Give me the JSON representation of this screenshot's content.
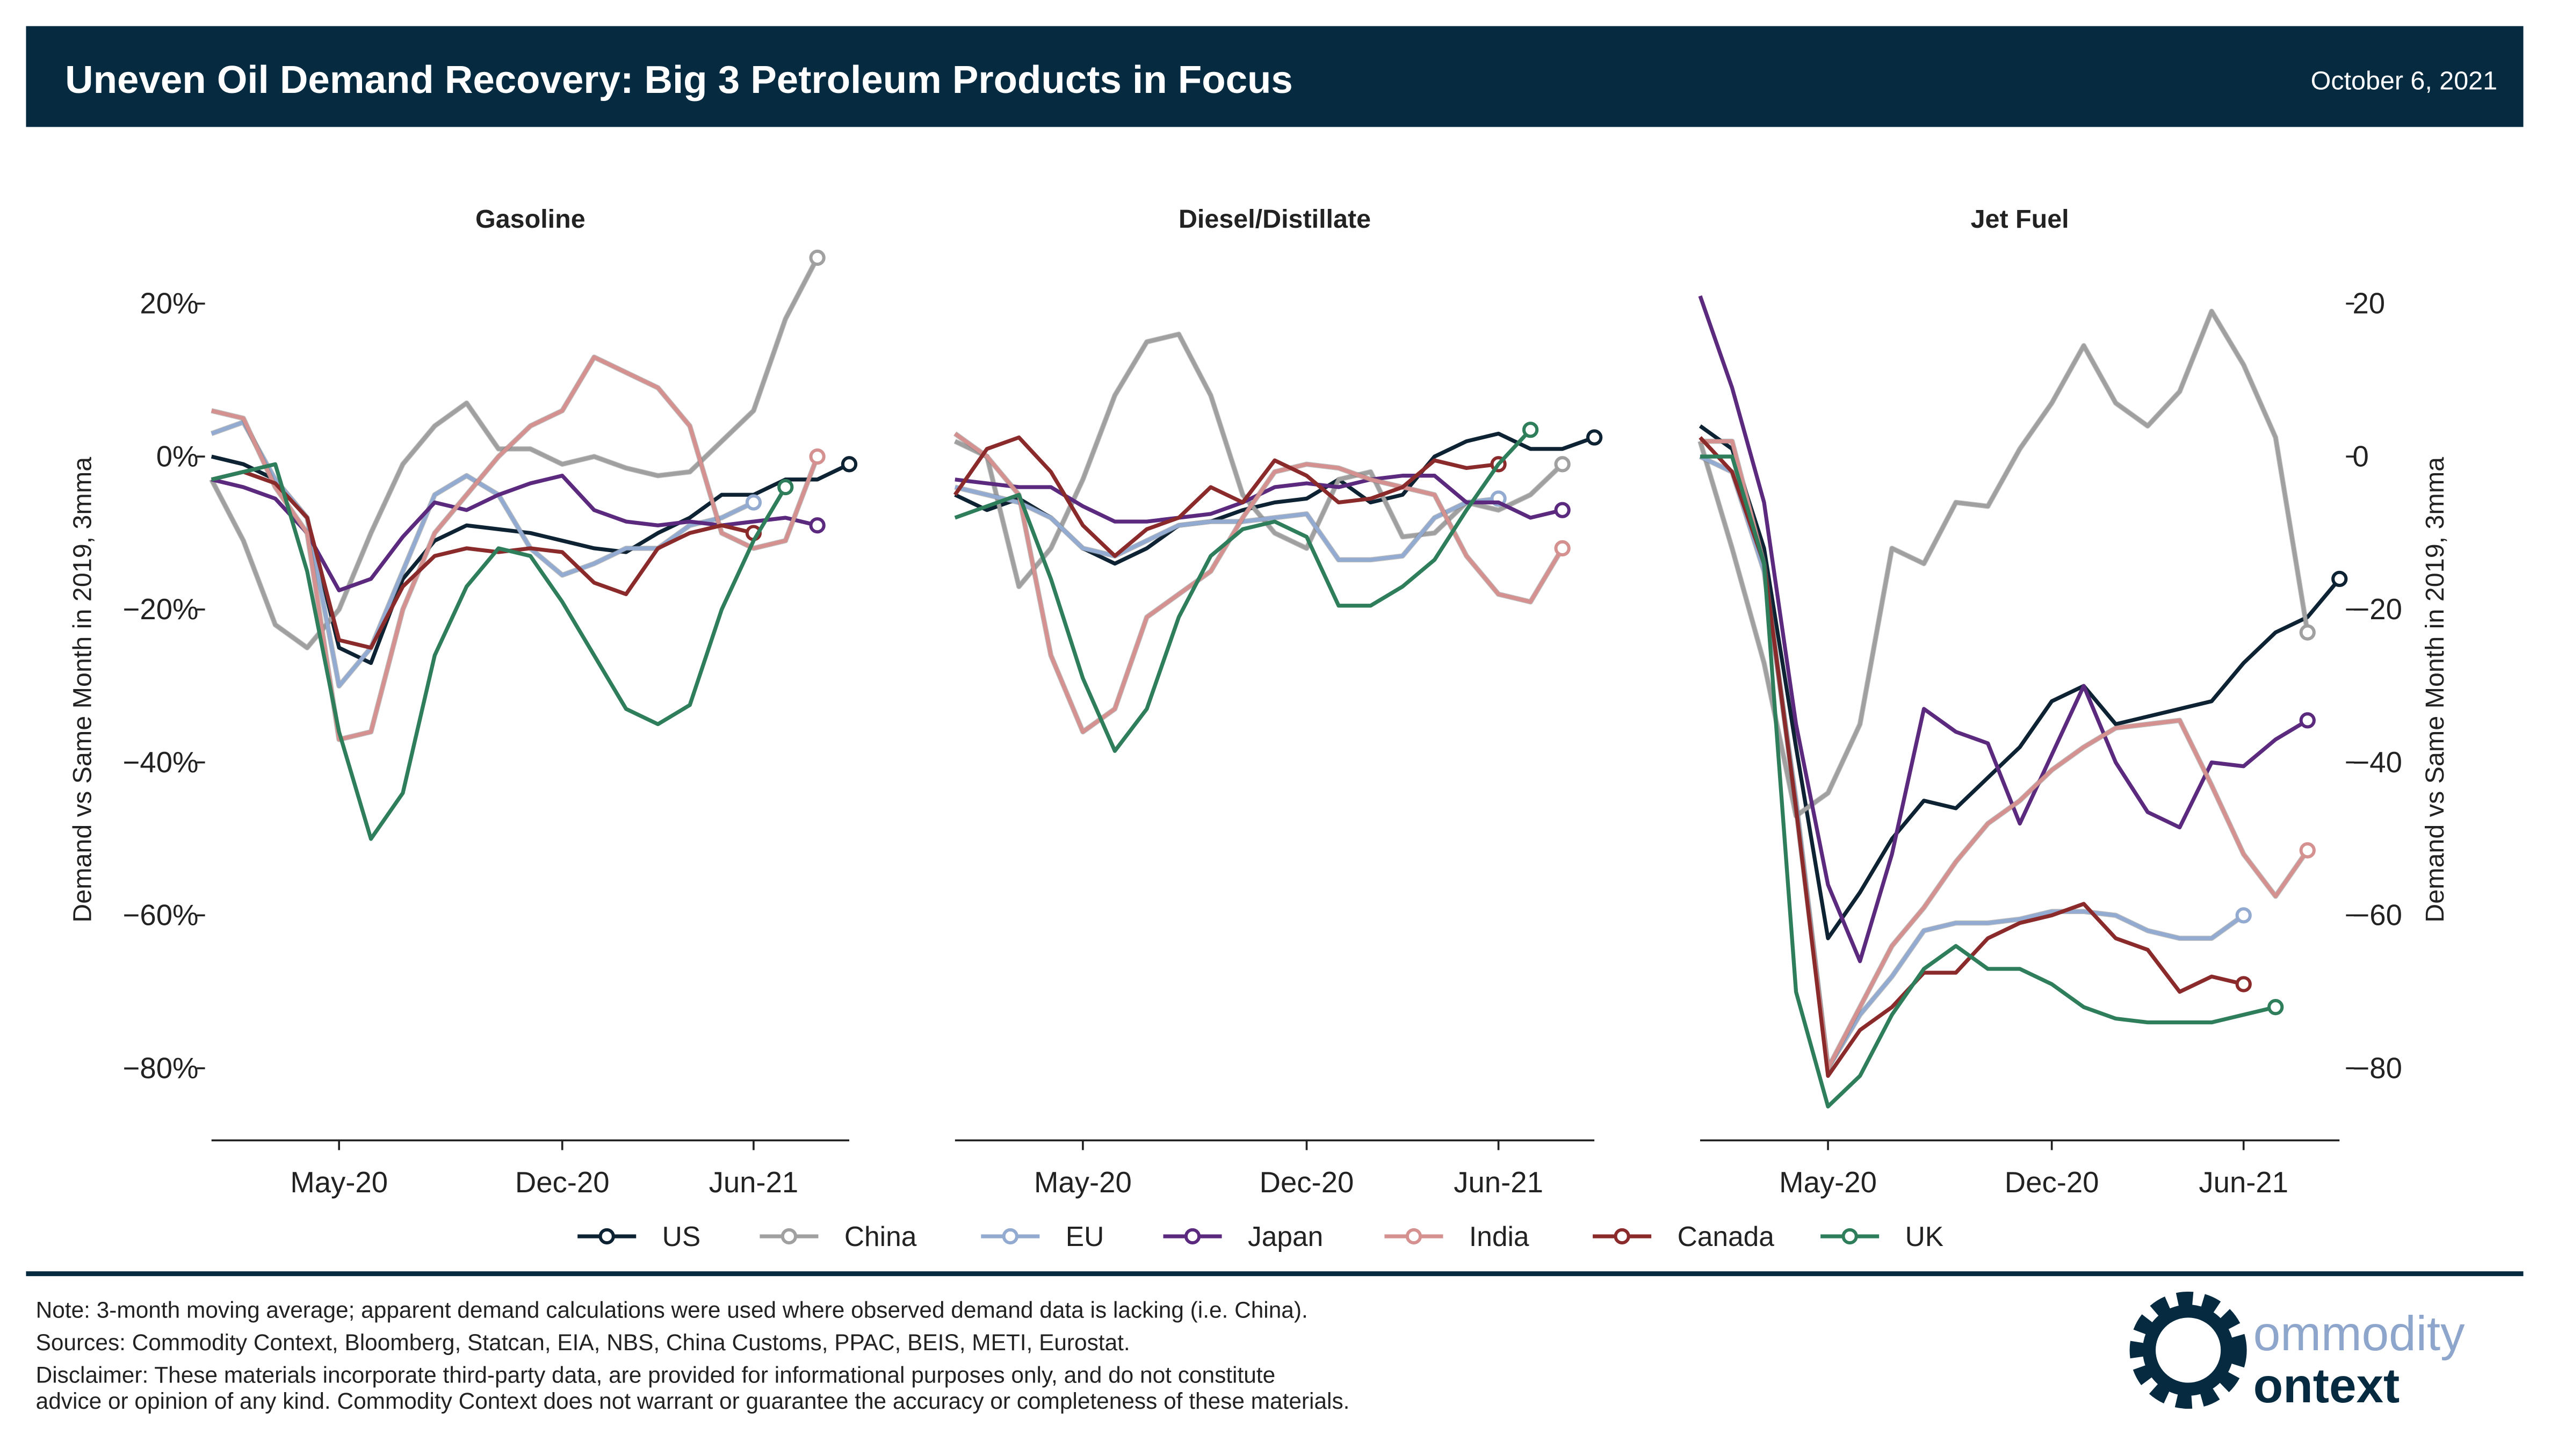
{
  "header": {
    "title": "Uneven Oil Demand Recovery: Big 3 Petroleum Products in Focus",
    "date": "October 6, 2021"
  },
  "footer": {
    "notes": [
      "Note: 3-month moving average; apparent demand calculations were used where observed demand data is lacking (i.e. China).",
      "Sources: Commodity Context, Bloomberg, Statcan, EIA, NBS, China Customs, PPAC, BEIS, METI, Eurostat.",
      "Disclaimer: These materials incorporate third-party data, are provided for informational purposes only, and do not constitute",
      "advice or opinion of any kind. Commodity Context does not warrant or guarantee the accuracy or completeness of these materials."
    ],
    "logo": [
      "ommodity",
      "ontext"
    ]
  },
  "chart_data": [
    {
      "type": "line",
      "title": "Gasoline",
      "ylabel": "Demand vs Same Month in 2019, 3mma",
      "x": [
        "2020-01",
        "2020-02",
        "2020-03",
        "2020-04",
        "2020-05",
        "2020-06",
        "2020-07",
        "2020-08",
        "2020-09",
        "2020-10",
        "2020-11",
        "2020-12",
        "2021-01",
        "2021-02",
        "2021-03",
        "2021-04",
        "2021-05",
        "2021-06",
        "2021-07",
        "2021-08",
        "2021-09"
      ],
      "xlim": [
        "2020-01",
        "2021-09"
      ],
      "xticks": [
        {
          "value": "2020-05",
          "label": "May-20"
        },
        {
          "value": "2020-12",
          "label": "Dec-20"
        },
        {
          "value": "2021-06",
          "label": "Jun-21"
        }
      ],
      "ylim": [
        -89,
        28
      ],
      "yticks": [
        {
          "value": 20,
          "label": "20%"
        },
        {
          "value": 0,
          "label": "0%"
        },
        {
          "value": -20,
          "label": "−20%"
        },
        {
          "value": -40,
          "label": "−40%"
        },
        {
          "value": -60,
          "label": "−60%"
        },
        {
          "value": -80,
          "label": "−80%"
        }
      ],
      "yaxis": "left",
      "grid": false,
      "series": [
        {
          "name": "US",
          "color": "#0d2233",
          "values": [
            0,
            -1,
            -3,
            -8,
            -25,
            -27,
            -16,
            -11,
            -9,
            -9.5,
            -10,
            -11,
            -12,
            -12.5,
            -10,
            -8,
            -5,
            -5,
            -3,
            -3,
            -1
          ]
        },
        {
          "name": "China",
          "color": "#a0a0a0",
          "values": [
            -3,
            -11,
            -22,
            -25,
            -20,
            -10,
            -1,
            4,
            7,
            1,
            1,
            -1,
            0,
            -1.5,
            -2.5,
            -2,
            2,
            6,
            18,
            26,
            null
          ]
        },
        {
          "name": "EU",
          "color": "#93abd0",
          "values": [
            3,
            4.5,
            -3,
            -8,
            -30,
            -25,
            -15,
            -5,
            -2.5,
            -5,
            -12,
            -15.5,
            -14,
            -12,
            -12,
            -9,
            -8,
            -6,
            null,
            null,
            null
          ]
        },
        {
          "name": "Japan",
          "color": "#5b2a7e",
          "values": [
            -3,
            -4,
            -5.5,
            -10,
            -17.5,
            -16,
            -10.5,
            -6,
            -7,
            -5,
            -3.5,
            -2.5,
            -7,
            -8.5,
            -9,
            -8.5,
            -9,
            -8.5,
            -8,
            -9,
            null
          ]
        },
        {
          "name": "India",
          "color": "#d4918f",
          "values": [
            6,
            5,
            -4,
            -10,
            -37,
            -36,
            -20,
            -10,
            -5,
            0,
            4,
            6,
            13,
            11,
            9,
            4,
            -10,
            -12,
            -11,
            0,
            null
          ]
        },
        {
          "name": "Canada",
          "color": "#8b2a2a",
          "values": [
            -3,
            -2,
            -3.5,
            -8,
            -24,
            -25,
            -17,
            -13,
            -12,
            -12.5,
            -12,
            -12.5,
            -16.5,
            -18,
            -12,
            -10,
            -9,
            -10,
            null,
            null,
            null
          ]
        },
        {
          "name": "UK",
          "color": "#2e7d5b",
          "values": [
            -3,
            -2,
            -1,
            -15,
            -36,
            -50,
            -44,
            -26,
            -17,
            -12,
            -13,
            -19,
            -26,
            -33,
            -35,
            -32.5,
            -20,
            -11,
            -4,
            null,
            null
          ]
        }
      ]
    },
    {
      "type": "line",
      "title": "Diesel/Distillate",
      "x": [
        "2020-01",
        "2020-02",
        "2020-03",
        "2020-04",
        "2020-05",
        "2020-06",
        "2020-07",
        "2020-08",
        "2020-09",
        "2020-10",
        "2020-11",
        "2020-12",
        "2021-01",
        "2021-02",
        "2021-03",
        "2021-04",
        "2021-05",
        "2021-06",
        "2021-07",
        "2021-08",
        "2021-09"
      ],
      "xlim": [
        "2020-01",
        "2021-09"
      ],
      "xticks": [
        {
          "value": "2020-05",
          "label": "May-20"
        },
        {
          "value": "2020-12",
          "label": "Dec-20"
        },
        {
          "value": "2021-06",
          "label": "Jun-21"
        }
      ],
      "ylim": [
        -89,
        28
      ],
      "grid": false,
      "series": [
        {
          "name": "US",
          "color": "#0d2233",
          "values": [
            -5,
            -7,
            -5.5,
            -8,
            -12,
            -14,
            -12,
            -9,
            -8.5,
            -7,
            -6,
            -5.5,
            -3,
            -6,
            -5,
            0,
            2,
            3,
            1,
            1,
            2.5
          ]
        },
        {
          "name": "China",
          "color": "#a0a0a0",
          "values": [
            2,
            0,
            -17,
            -12,
            -3,
            8,
            15,
            16,
            8,
            -5,
            -10,
            -12,
            -3,
            -2,
            -10.5,
            -10,
            -6,
            -7,
            -5,
            -1,
            null
          ]
        },
        {
          "name": "EU",
          "color": "#93abd0",
          "values": [
            -4,
            -5,
            -6,
            -8,
            -12,
            -13,
            -11,
            -9,
            -8.5,
            -8.5,
            -8,
            -7.5,
            -13.5,
            -13.5,
            -13,
            -8,
            -6,
            -5.5,
            null,
            null,
            null
          ]
        },
        {
          "name": "Japan",
          "color": "#5b2a7e",
          "values": [
            -3,
            -3.5,
            -4,
            -4,
            -6.5,
            -8.5,
            -8.5,
            -8,
            -7.5,
            -6,
            -4,
            -3.5,
            -4,
            -3,
            -2.5,
            -2.5,
            -6,
            -6,
            -8,
            -7,
            null
          ]
        },
        {
          "name": "India",
          "color": "#d4918f",
          "values": [
            3,
            0,
            -5,
            -26,
            -36,
            -33,
            -21,
            -18,
            -15,
            -8,
            -2,
            -1,
            -1.5,
            -3,
            -4,
            -5,
            -13,
            -18,
            -19,
            -12,
            null
          ]
        },
        {
          "name": "Canada",
          "color": "#8b2a2a",
          "values": [
            -5,
            1,
            2.5,
            -2,
            -9,
            -13,
            -9.5,
            -8,
            -4,
            -6,
            -0.5,
            -2.5,
            -6,
            -5.5,
            -4,
            -0.5,
            -1.5,
            -1,
            null,
            null,
            null
          ]
        },
        {
          "name": "UK",
          "color": "#2e7d5b",
          "values": [
            -8,
            -6.5,
            -5,
            -16,
            -29,
            -38.5,
            -33,
            -21,
            -13,
            -9.5,
            -8.5,
            -10.5,
            -19.5,
            -19.5,
            -17,
            -13.5,
            -7,
            -1,
            3.5,
            null,
            null
          ]
        }
      ]
    },
    {
      "type": "line",
      "title": "Jet Fuel",
      "ylabel": "Demand vs Same Month in 2019, 3mma",
      "x": [
        "2020-01",
        "2020-02",
        "2020-03",
        "2020-04",
        "2020-05",
        "2020-06",
        "2020-07",
        "2020-08",
        "2020-09",
        "2020-10",
        "2020-11",
        "2020-12",
        "2021-01",
        "2021-02",
        "2021-03",
        "2021-04",
        "2021-05",
        "2021-06",
        "2021-07",
        "2021-08",
        "2021-09"
      ],
      "xlim": [
        "2020-01",
        "2021-09"
      ],
      "xticks": [
        {
          "value": "2020-05",
          "label": "May-20"
        },
        {
          "value": "2020-12",
          "label": "Dec-20"
        },
        {
          "value": "2021-06",
          "label": "Jun-21"
        }
      ],
      "ylim": [
        -89,
        28
      ],
      "yticks": [
        20,
        0,
        {
          "value": -20,
          "label": "−20"
        },
        {
          "value": -40,
          "label": "−40"
        },
        {
          "value": -60,
          "label": "−60"
        },
        {
          "value": -80,
          "label": "−80"
        }
      ],
      "yaxis": "right",
      "grid": false,
      "series": [
        {
          "name": "US",
          "color": "#0d2233",
          "values": [
            4,
            1,
            -12,
            -38,
            -63,
            -57,
            -50,
            -45,
            -46,
            -42,
            -38,
            -32,
            -30,
            -35,
            -34,
            -33,
            -32,
            -27,
            -23,
            -21,
            -16
          ]
        },
        {
          "name": "China",
          "color": "#a0a0a0",
          "values": [
            2,
            -12,
            -27,
            -47,
            -44,
            -35,
            -12,
            -14,
            -6,
            -6.5,
            1,
            7,
            14.5,
            7,
            4,
            8.5,
            19,
            12,
            2.5,
            -23,
            null
          ]
        },
        {
          "name": "EU",
          "color": "#93abd0",
          "values": [
            0,
            -2,
            -15,
            -45,
            -80,
            -73,
            -68,
            -62,
            -61,
            -61,
            -60.5,
            -59.5,
            -59.5,
            -60,
            -62,
            -63,
            -63,
            -60,
            null,
            null,
            null
          ]
        },
        {
          "name": "Japan",
          "color": "#5b2a7e",
          "values": [
            21,
            9,
            -6,
            -35,
            -56,
            -66,
            -52,
            -33,
            -36,
            -37.5,
            -48,
            -39,
            -30,
            -40,
            -46.5,
            -48.5,
            -40,
            -40.5,
            -37,
            -34.5,
            null
          ]
        },
        {
          "name": "India",
          "color": "#d4918f",
          "values": [
            2,
            2,
            -14,
            -46,
            -80,
            -72,
            -64,
            -59,
            -53,
            -48,
            -45,
            -41,
            -38,
            -35.5,
            -35,
            -34.5,
            -43,
            -52,
            -57.5,
            -51.5,
            null
          ]
        },
        {
          "name": "Canada",
          "color": "#8b2a2a",
          "values": [
            2.5,
            -2,
            -14,
            -46,
            -81,
            -75,
            -72,
            -67.5,
            -67.5,
            -63,
            -61,
            -60,
            -58.5,
            -63,
            -64.5,
            -70,
            -68,
            -69,
            null,
            null,
            null
          ]
        },
        {
          "name": "UK",
          "color": "#2e7d5b",
          "values": [
            0,
            0,
            -14,
            -70,
            -85,
            -81,
            -73,
            -67,
            -64,
            -67,
            -67,
            -69,
            -72,
            -73.5,
            -74,
            -74,
            -74,
            -73,
            -72,
            null,
            null
          ]
        }
      ]
    }
  ]
}
